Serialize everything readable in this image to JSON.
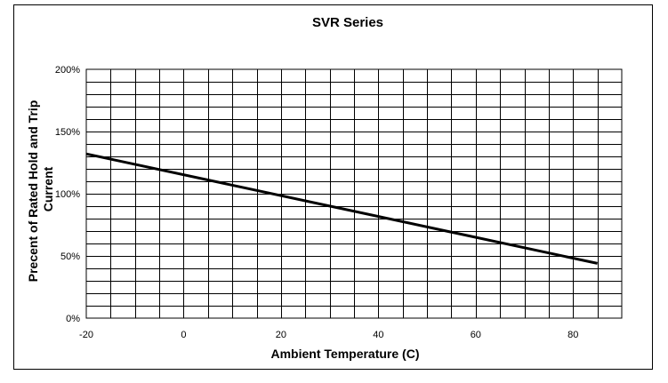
{
  "chart_data": {
    "type": "line",
    "title": "SVR Series",
    "xlabel": "Ambient Temperature (C)",
    "ylabel_lines": [
      "Precent of Rated Hold and Trip",
      "Current"
    ],
    "xlim": [
      -20,
      90
    ],
    "ylim": [
      0,
      200
    ],
    "x_ticks": [
      -20,
      0,
      20,
      40,
      60,
      80
    ],
    "x_tick_labels": [
      "-20",
      "0",
      "20",
      "40",
      "60",
      "80"
    ],
    "y_ticks": [
      0,
      50,
      100,
      150,
      200
    ],
    "y_tick_labels": [
      "0%",
      "50%",
      "100%",
      "150%",
      "200%"
    ],
    "x_grid_step": 5,
    "y_grid_step": 10,
    "grid": true,
    "legend": "none",
    "series": [
      {
        "x": [
          -20,
          85
        ],
        "y": [
          132,
          44
        ]
      }
    ],
    "colors": {
      "line": "#000000",
      "grid": "#000000"
    }
  }
}
